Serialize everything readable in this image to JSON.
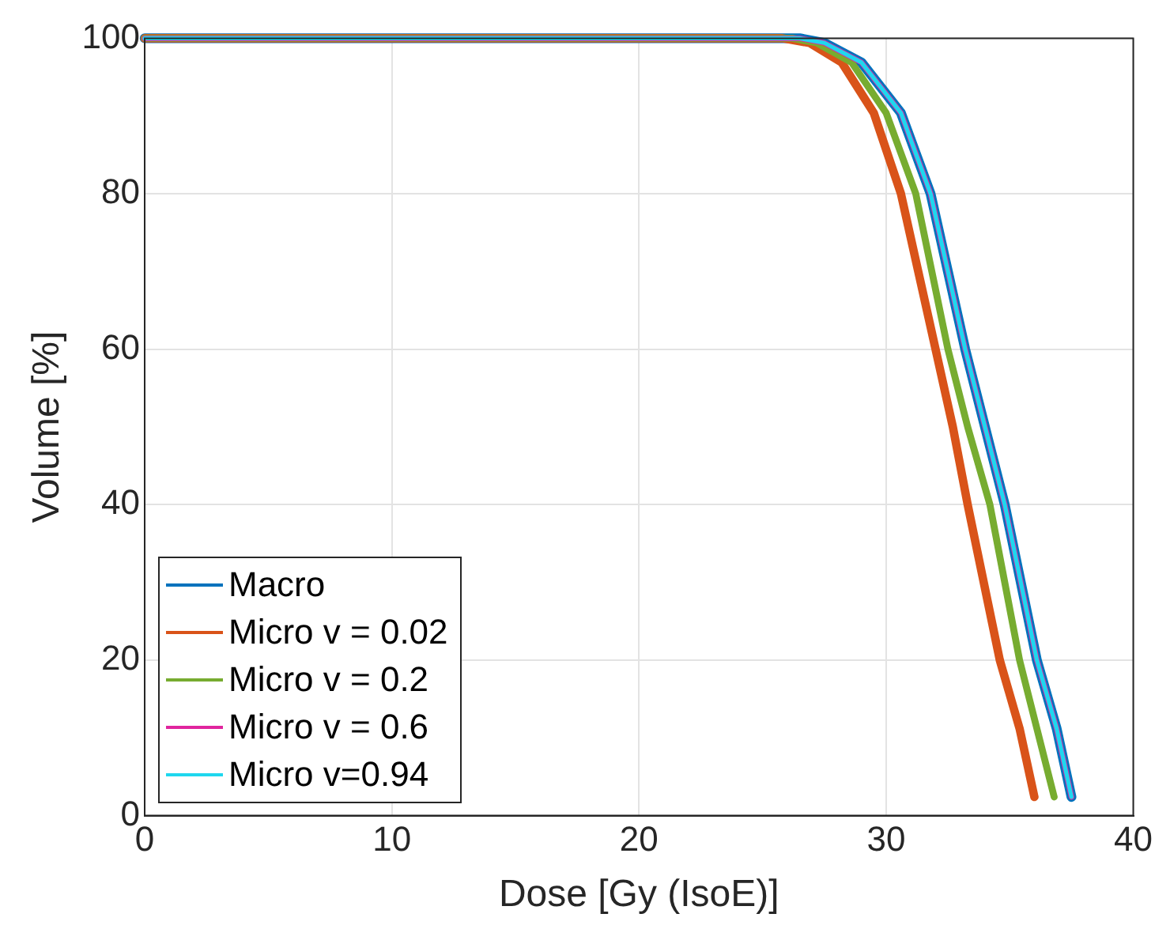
{
  "chart_data": {
    "type": "line",
    "xlabel": "Dose [Gy (IsoE)]",
    "ylabel": "Volume [%]",
    "xlim": [
      0,
      40
    ],
    "xticks": [
      0,
      10,
      20,
      30,
      40
    ],
    "ylim": [
      0,
      100
    ],
    "yticks": [
      0,
      20,
      40,
      60,
      80,
      100
    ],
    "grid": true,
    "legend": "bottom left",
    "marker": "none",
    "line_style": "solid",
    "series": [
      {
        "name": "Macro",
        "color": "#0072bd",
        "x": [
          0,
          25,
          26.5,
          27.5,
          29.0,
          30.6,
          31.8,
          32.5,
          33.2,
          34.0,
          34.8,
          36.1,
          36.9,
          37.5
        ],
        "values": [
          100,
          100,
          100,
          99.4,
          96.9,
          90.4,
          80,
          70,
          60,
          50,
          40,
          20,
          11.2,
          2.4
        ]
      },
      {
        "name": "Micro v = 0.02",
        "color": "#d95319",
        "x": [
          0,
          24.5,
          25.8,
          26.9,
          28.2,
          29.5,
          30.6,
          31.3,
          32.0,
          32.7,
          33.3,
          34.6,
          35.4,
          36.0
        ],
        "values": [
          100,
          100,
          100,
          99.4,
          96.9,
          90.4,
          80,
          70,
          60,
          50,
          40,
          20,
          11.2,
          2.4
        ]
      },
      {
        "name": "Micro v = 0.2",
        "color": "#77ac30",
        "x": [
          0,
          25,
          26.2,
          27.2,
          28.6,
          30.0,
          31.2,
          31.85,
          32.5,
          33.3,
          34.2,
          35.4,
          36.1,
          36.8
        ],
        "values": [
          100,
          100,
          100,
          99.4,
          96.9,
          90.4,
          80,
          70,
          60,
          50,
          40,
          20,
          11.2,
          2.4
        ]
      },
      {
        "name": "Micro v = 0.6",
        "color": "#e0259e",
        "x": [
          0,
          25,
          26.5,
          27.5,
          29.0,
          30.6,
          31.8,
          32.5,
          33.2,
          34.0,
          34.8,
          36.1,
          36.9,
          37.5
        ],
        "values": [
          100,
          100,
          100,
          99.4,
          96.9,
          90.4,
          80,
          70,
          60,
          50,
          40,
          20,
          11.2,
          2.4
        ]
      },
      {
        "name": "Micro v=0.94",
        "color": "#1fd7ee",
        "x": [
          0,
          25,
          26.5,
          27.5,
          29.0,
          30.6,
          31.8,
          32.5,
          33.2,
          34.0,
          34.8,
          36.1,
          36.9,
          37.5
        ],
        "values": [
          100,
          100,
          100,
          99.4,
          96.9,
          90.4,
          80,
          70,
          60,
          50,
          40,
          20,
          11.2,
          2.4
        ]
      }
    ]
  }
}
